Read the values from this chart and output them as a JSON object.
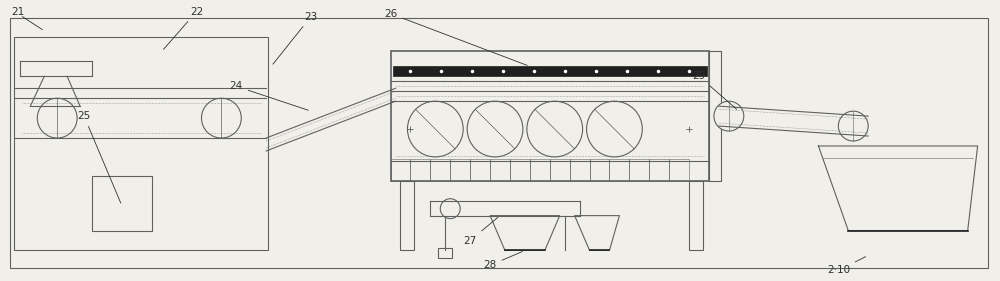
{
  "bg_color": "#f0efea",
  "line_color": "#606060",
  "dark_color": "#202020",
  "figsize": [
    10.0,
    2.81
  ],
  "dpi": 100,
  "label_fs": 7.5,
  "label_color": "#303030"
}
